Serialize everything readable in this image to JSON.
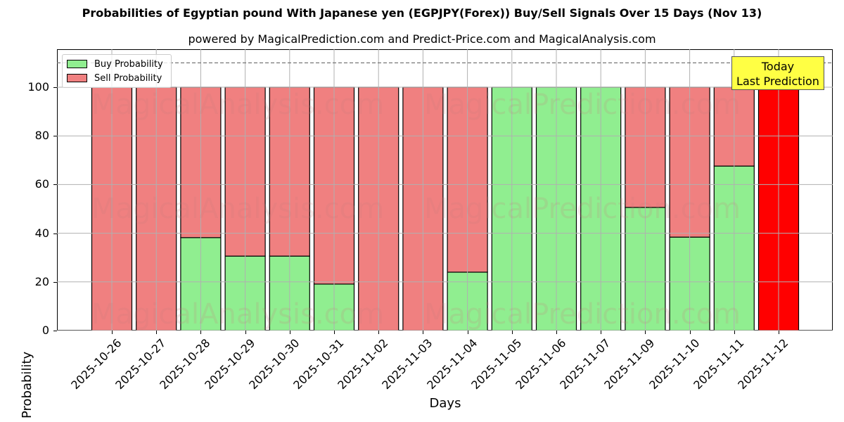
{
  "header": {
    "title": "Probabilities of Egyptian pound With Japanese yen (EGPJPY(Forex)) Buy/Sell Signals Over 15 Days (Nov 13)",
    "subtitle": "powered by MagicalPrediction.com and Predict-Price.com and MagicalAnalysis.com"
  },
  "annotation": {
    "line1": "Today",
    "line2": "Last Prediction"
  },
  "watermarks": [
    "MagicalAnalysis.com",
    "MagicalPrediction.com"
  ],
  "colors": {
    "buy": "#90ee90",
    "sell": "#f08080",
    "today": "#ff0000",
    "annotation_bg": "#ffff44"
  },
  "chart_data": {
    "type": "bar",
    "stacked": true,
    "title": "Probabilities of Egyptian pound With Japanese yen (EGPJPY(Forex)) Buy/Sell Signals Over 15 Days (Nov 13)",
    "subtitle": "powered by MagicalPrediction.com and Predict-Price.com and MagicalAnalysis.com",
    "xlabel": "Days",
    "ylabel": "Probability",
    "ylim": [
      0,
      115
    ],
    "yticks": [
      0,
      20,
      40,
      60,
      80,
      100
    ],
    "reference_line": 110,
    "grid": true,
    "legend_position": "upper left",
    "categories": [
      "2025-10-26",
      "2025-10-27",
      "2025-10-28",
      "2025-10-29",
      "2025-10-30",
      "2025-10-31",
      "2025-11-02",
      "2025-11-03",
      "2025-11-04",
      "2025-11-05",
      "2025-11-06",
      "2025-11-07",
      "2025-11-09",
      "2025-11-10",
      "2025-11-11",
      "2025-11-12"
    ],
    "series": [
      {
        "name": "Buy Probability",
        "color": "#90ee90",
        "values": [
          0,
          0,
          38.2,
          30.6,
          30.6,
          19.1,
          0,
          0,
          24.0,
          100,
          100,
          100,
          50.6,
          38.4,
          67.6,
          0
        ]
      },
      {
        "name": "Sell Probability",
        "color": "#f08080",
        "values": [
          100,
          100,
          61.8,
          69.4,
          69.4,
          80.9,
          100,
          100,
          76.0,
          0,
          0,
          0,
          49.4,
          61.6,
          32.4,
          100
        ]
      }
    ],
    "highlight": {
      "category": "2025-11-12",
      "color": "#ff0000",
      "label": "Today Last Prediction"
    }
  }
}
